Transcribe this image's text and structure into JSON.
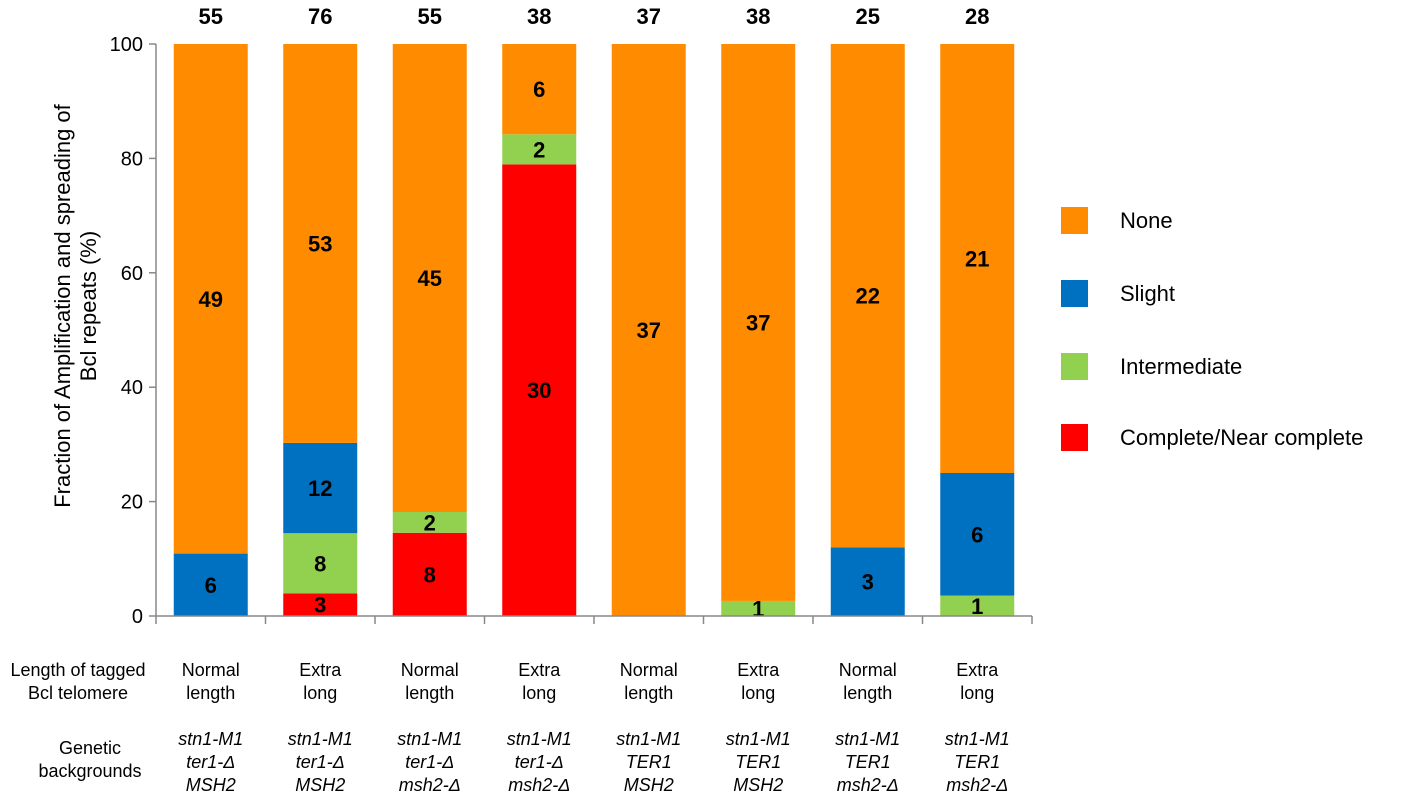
{
  "chart_data": {
    "type": "bar",
    "stacked": true,
    "ylabel": [
      "Fraction of Amplification and spreading of",
      "Bcl repeats (%)"
    ],
    "ylim": [
      0,
      100
    ],
    "yticks": [
      "0",
      "20",
      "40",
      "60",
      "80",
      "100"
    ],
    "grid": false,
    "legend_position": "right",
    "series": [
      {
        "name": "Complete/Near complete",
        "color": "#ff0000",
        "counts": [
          0,
          3,
          8,
          30,
          0,
          0,
          0,
          0
        ],
        "labels": [
          "",
          "3",
          "8",
          "30",
          "",
          "",
          "",
          ""
        ]
      },
      {
        "name": "Intermediate",
        "color": "#92d050",
        "counts": [
          0,
          8,
          2,
          2,
          0,
          1,
          0,
          1
        ],
        "labels": [
          "",
          "8",
          "2",
          "2",
          "",
          "1",
          "",
          "1"
        ]
      },
      {
        "name": "Slight",
        "color": "#0070c0",
        "counts": [
          6,
          12,
          0,
          0,
          0,
          0,
          3,
          6
        ],
        "labels": [
          "6",
          "12",
          "",
          "",
          "",
          "",
          "3",
          "6"
        ]
      },
      {
        "name": "None",
        "color": "#ff8c00",
        "counts": [
          49,
          53,
          45,
          6,
          37,
          37,
          22,
          21
        ],
        "labels": [
          "49",
          "53",
          "45",
          "6",
          "37",
          "37",
          "22",
          "21"
        ]
      }
    ],
    "legend_order": [
      "None",
      "Slight",
      "Intermediate",
      "Complete/Near complete"
    ],
    "totals": [
      "55",
      "76",
      "55",
      "38",
      "37",
      "38",
      "25",
      "28"
    ],
    "totals_values": [
      55,
      76,
      55,
      38,
      37,
      38,
      25,
      28
    ]
  },
  "table": {
    "row1_header": [
      "Length of tagged",
      "Bcl telomere"
    ],
    "row2_header": [
      "Genetic",
      "backgrounds"
    ],
    "length": [
      [
        "Normal",
        "length"
      ],
      [
        "Extra",
        "long"
      ],
      [
        "Normal",
        "length"
      ],
      [
        "Extra",
        "long"
      ],
      [
        "Normal",
        "length"
      ],
      [
        "Extra",
        "long"
      ],
      [
        "Normal",
        "length"
      ],
      [
        "Extra",
        "long"
      ]
    ],
    "genetic": [
      [
        "stn1-M1",
        "ter1-Δ",
        "MSH2"
      ],
      [
        "stn1-M1",
        "ter1-Δ",
        "MSH2"
      ],
      [
        "stn1-M1",
        "ter1-Δ",
        "msh2-Δ"
      ],
      [
        "stn1-M1",
        "ter1-Δ",
        "msh2-Δ"
      ],
      [
        "stn1-M1",
        "TER1",
        "MSH2"
      ],
      [
        "stn1-M1",
        "TER1",
        "MSH2"
      ],
      [
        "stn1-M1",
        "TER1",
        "msh2-Δ"
      ],
      [
        "stn1-M1",
        "TER1",
        "msh2-Δ"
      ]
    ]
  }
}
